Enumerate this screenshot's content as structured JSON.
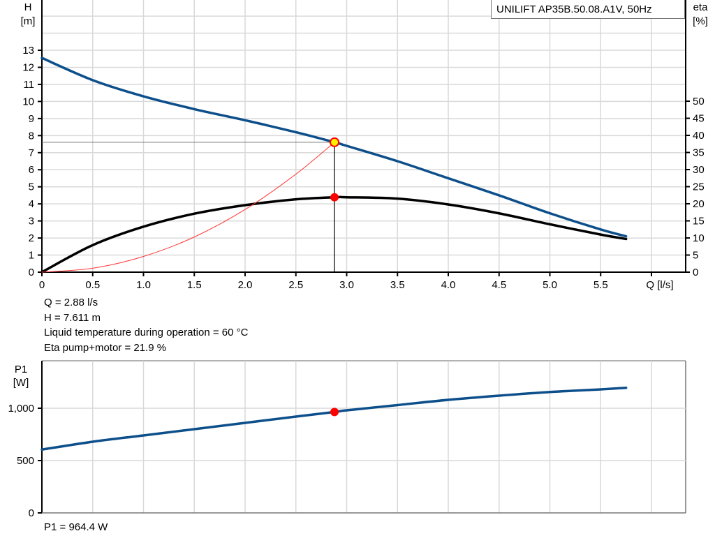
{
  "chart_data": [
    {
      "type": "line",
      "title": "UNILIFT AP35B.50.08.A1V, 50Hz",
      "xlabel": "Q [l/s]",
      "ylabel_left": "H\n[m]",
      "ylabel_right": "eta\n[%]",
      "x_ticks": [
        "0",
        "0.5",
        "1.0",
        "1.5",
        "2.0",
        "2.5",
        "3.0",
        "3.5",
        "4.0",
        "4.5",
        "5.0",
        "5.5"
      ],
      "y_left_ticks": [
        "0",
        "1",
        "2",
        "3",
        "4",
        "5",
        "6",
        "7",
        "8",
        "9",
        "10",
        "11",
        "12",
        "13"
      ],
      "y_right_ticks": [
        "0",
        "5",
        "10",
        "15",
        "20",
        "25",
        "30",
        "35",
        "40",
        "45",
        "50"
      ],
      "xlim": [
        0,
        6.0
      ],
      "ylim_left": [
        0,
        15.9
      ],
      "ylim_right": [
        0,
        79.6
      ],
      "grid": true,
      "series": [
        {
          "name": "H (head curve)",
          "axis": "left",
          "color": "#0d4f8b",
          "x": [
            0,
            0.5,
            1.0,
            1.5,
            2.0,
            2.5,
            2.88,
            3.0,
            3.5,
            4.0,
            4.5,
            5.0,
            5.5,
            5.75
          ],
          "values": [
            12.55,
            11.25,
            10.3,
            9.55,
            8.9,
            8.2,
            7.611,
            7.4,
            6.5,
            5.5,
            4.5,
            3.45,
            2.5,
            2.1
          ]
        },
        {
          "name": "eta pump+motor",
          "axis": "right",
          "color": "#000000",
          "x": [
            0,
            0.5,
            1.0,
            1.5,
            2.0,
            2.5,
            2.88,
            3.0,
            3.5,
            4.0,
            4.5,
            5.0,
            5.5,
            5.75
          ],
          "values": [
            0,
            7.9,
            13.3,
            17.1,
            19.6,
            21.3,
            21.9,
            21.9,
            21.5,
            19.8,
            17.2,
            14.0,
            11.0,
            9.7
          ]
        },
        {
          "name": "system curve",
          "axis": "left",
          "color": "#ff3333",
          "x": [
            0,
            0.5,
            1.0,
            1.5,
            2.0,
            2.5,
            2.88
          ],
          "values": [
            0,
            0.23,
            0.92,
            2.06,
            3.67,
            5.74,
            7.611
          ]
        }
      ],
      "duty_point": {
        "Q": 2.88,
        "H": 7.611,
        "eta": 21.9
      }
    },
    {
      "type": "line",
      "title": "",
      "xlabel": "",
      "ylabel": "P1\n[W]",
      "y_ticks": [
        "0",
        "500",
        "1,000"
      ],
      "xlim": [
        0,
        6.0
      ],
      "ylim": [
        0,
        1450
      ],
      "grid": true,
      "series": [
        {
          "name": "P1",
          "color": "#0d4f8b",
          "x": [
            0,
            0.5,
            1.0,
            1.5,
            2.0,
            2.5,
            2.88,
            3.0,
            3.5,
            4.0,
            4.5,
            5.0,
            5.5,
            5.75
          ],
          "values": [
            605,
            680,
            740,
            800,
            860,
            920,
            964.4,
            980,
            1030,
            1080,
            1120,
            1155,
            1180,
            1195
          ]
        }
      ],
      "duty_point": {
        "Q": 2.88,
        "P1": 964.4
      }
    }
  ],
  "top_chart": {
    "title": "UNILIFT AP35B.50.08.A1V, 50Hz",
    "y_left_label_1": "H",
    "y_left_label_2": "[m]",
    "y_right_label_1": "eta",
    "y_right_label_2": "[%]",
    "x_label": "Q [l/s]"
  },
  "info": {
    "q": "Q = 2.88 l/s",
    "h": "H = 7.611 m",
    "temp": "Liquid temperature during operation = 60 °C",
    "eta": "Eta pump+motor = 21.9 %"
  },
  "bottom_chart": {
    "y_label_1": "P1",
    "y_label_2": "[W]",
    "p1_readout": "P1 = 964.4 W"
  },
  "colors": {
    "head_curve": "#0d4f8b",
    "eta_curve": "#000000",
    "system_curve": "#ff3333",
    "duty_marker": "#ff0000",
    "duty_marker_fill": "#ffee00",
    "grid": "#d9d9d9"
  }
}
